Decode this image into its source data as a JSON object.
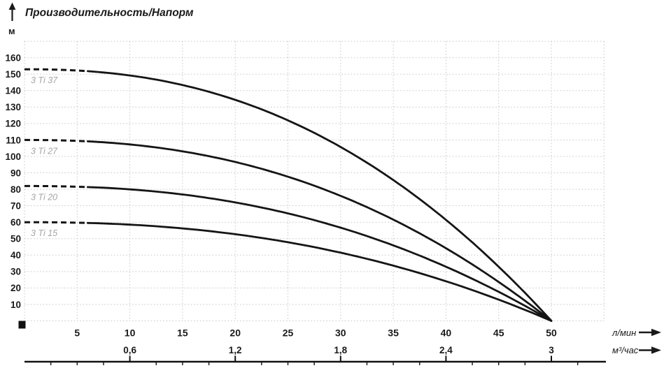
{
  "header": {
    "title": "Производительность/Напорм",
    "y_axis_unit": "м"
  },
  "chart_data": {
    "type": "line",
    "title": "Производительность/Напорм",
    "ylabel": "м",
    "xlabel_primary": "л/мин",
    "xlabel_secondary": "м³/час",
    "xlim_lpm": [
      0,
      55
    ],
    "ylim_m": [
      0,
      170
    ],
    "grid": true,
    "legend_position": "inline-curve-labels",
    "y_ticks_m": [
      160,
      150,
      140,
      130,
      120,
      110,
      100,
      90,
      80,
      70,
      60,
      50,
      40,
      30,
      20,
      10
    ],
    "x_ticks_lpm": [
      5,
      10,
      15,
      20,
      25,
      30,
      35,
      40,
      45,
      50
    ],
    "x_ticks_m3h": [
      {
        "label": "0,6",
        "at_lpm": 10
      },
      {
        "label": "1,2",
        "at_lpm": 20
      },
      {
        "label": "1,8",
        "at_lpm": 30
      },
      {
        "label": "2,4",
        "at_lpm": 40
      },
      {
        "label": "3",
        "at_lpm": 50
      }
    ],
    "series": [
      {
        "name": "3 Ti 37",
        "max_head_m": 153,
        "max_flow_lpm": 50,
        "dashed_until_lpm": 6,
        "curve_exponent": 2.3,
        "flow_lpm": [
          0,
          5,
          10,
          15,
          20,
          25,
          30,
          35,
          40,
          45,
          50
        ],
        "head_m": [
          153,
          152,
          149,
          143,
          134,
          122,
          106,
          86,
          61,
          33,
          0
        ]
      },
      {
        "name": "3 Ti 27",
        "max_head_m": 110,
        "max_flow_lpm": 50,
        "dashed_until_lpm": 6,
        "curve_exponent": 2.3,
        "flow_lpm": [
          0,
          5,
          10,
          15,
          20,
          25,
          30,
          35,
          40,
          45,
          50
        ],
        "head_m": [
          110,
          109,
          107,
          103,
          97,
          88,
          76,
          62,
          44,
          24,
          0
        ]
      },
      {
        "name": "3 Ti 20",
        "max_head_m": 82,
        "max_flow_lpm": 50,
        "dashed_until_lpm": 6,
        "curve_exponent": 2.3,
        "flow_lpm": [
          0,
          5,
          10,
          15,
          20,
          25,
          30,
          35,
          40,
          45,
          50
        ],
        "head_m": [
          82,
          82,
          80,
          77,
          72,
          65,
          57,
          46,
          33,
          18,
          0
        ]
      },
      {
        "name": "3 Ti 15",
        "max_head_m": 60,
        "max_flow_lpm": 50,
        "dashed_until_lpm": 6,
        "curve_exponent": 2.3,
        "flow_lpm": [
          0,
          5,
          10,
          15,
          20,
          25,
          30,
          35,
          40,
          45,
          50
        ],
        "head_m": [
          60,
          60,
          59,
          56,
          53,
          48,
          41,
          34,
          24,
          13,
          0
        ]
      }
    ],
    "colors": {
      "curve": "#151515",
      "grid": "#cdcdcd",
      "text": "#1a1a1a",
      "series_label": "#a6a6a6"
    }
  }
}
